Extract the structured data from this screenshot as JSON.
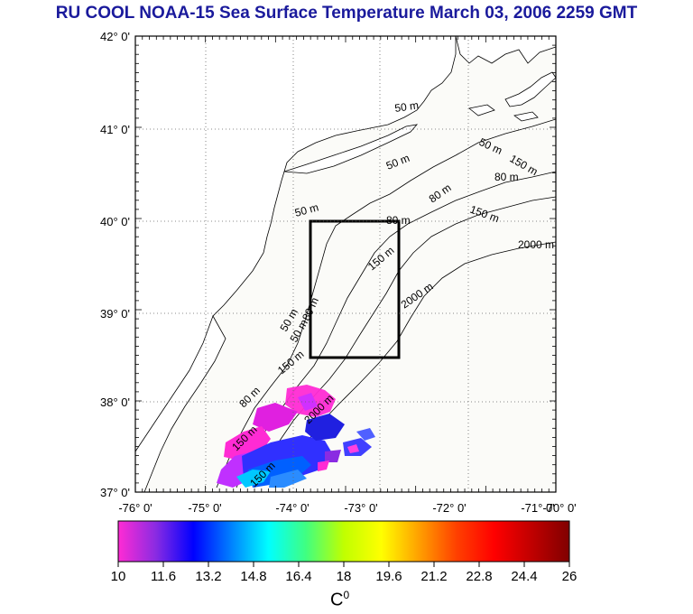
{
  "title": "RU COOL  NOAA-15 Sea Surface Temperature March 03, 2006 2259 GMT",
  "lat_labels": [
    "42° 0'",
    "41° 0'",
    "40° 0'",
    "39° 0'",
    "38° 0'",
    "37° 0'"
  ],
  "lon_labels": [
    "-76° 0'",
    "-75° 0'",
    "-74° 0'",
    "-73° 0'",
    "-72° 0'",
    "-71° 0'",
    "-70° 0'"
  ],
  "contour_labels": [
    "50 m",
    "50 m",
    "50 m",
    "50 m",
    "80 m",
    "80 m",
    "80 m",
    "150 m",
    "150 m",
    "2000 m",
    "150 m",
    "2000 m",
    "50 m",
    "50 m",
    "80 m",
    "150 m",
    "80 m",
    "150 m",
    "2000 m",
    "150 m"
  ],
  "colorbar": {
    "ticks": [
      "10",
      "11.6",
      "13.2",
      "14.8",
      "16.4",
      "18",
      "19.6",
      "21.2",
      "22.8",
      "24.4",
      "26"
    ],
    "unit": "C",
    "unit_sup": "0",
    "stops": [
      "#ff2bd4",
      "#8a2be2",
      "#0000ff",
      "#0080ff",
      "#00ffff",
      "#40ff80",
      "#c0ff00",
      "#ffff00",
      "#ffa000",
      "#ff4000",
      "#ff0000",
      "#c00000",
      "#800000"
    ]
  },
  "colors": {
    "land": "#ffffff",
    "ocean": "#fbfbf8",
    "frame": "#000000",
    "title": "#1a1a9c"
  }
}
